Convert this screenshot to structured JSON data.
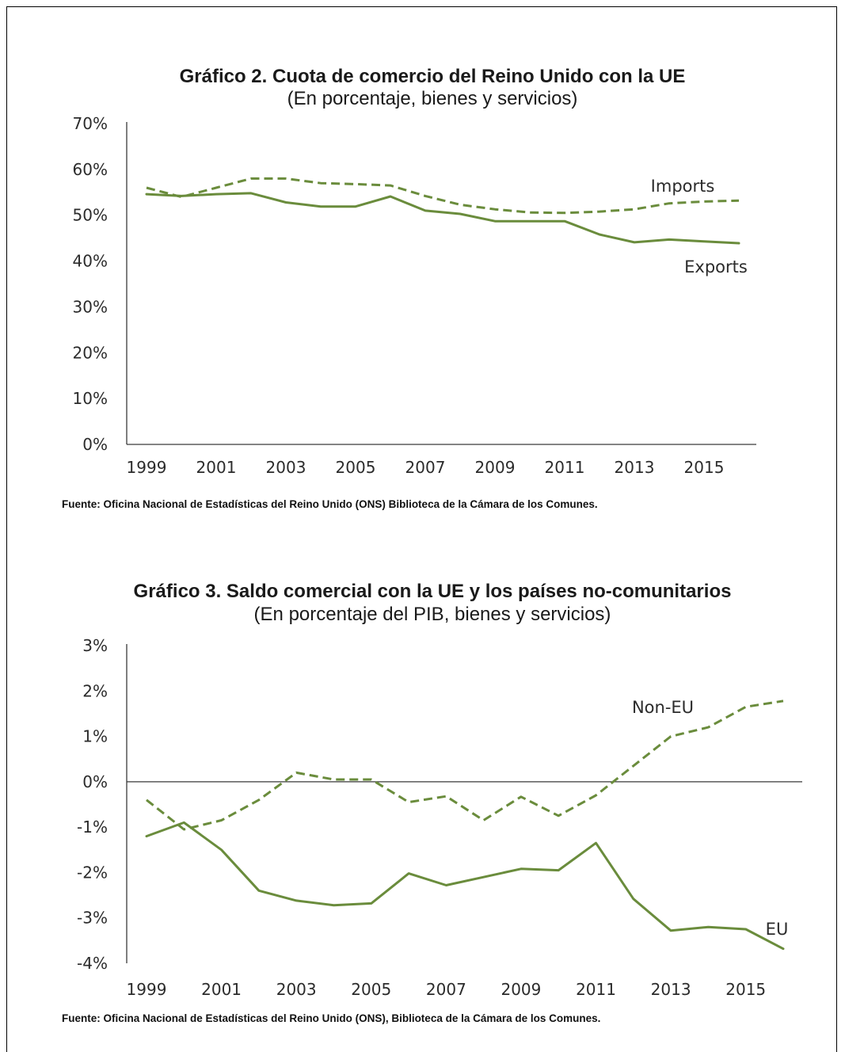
{
  "colors": {
    "series": "#6a8c3c",
    "axis": "#3a3a3a",
    "text": "#1a1a1a"
  },
  "chart_data": [
    {
      "type": "line",
      "title": "Gráfico 2. Cuota de comercio del Reino Unido con la UE",
      "subtitle": "(En porcentaje, bienes y servicios)",
      "ytick_labels": [
        "0%",
        "10%",
        "20%",
        "30%",
        "40%",
        "50%",
        "60%",
        "70%"
      ],
      "yticks": [
        0,
        10,
        20,
        30,
        40,
        50,
        60,
        70
      ],
      "ylim": [
        0,
        70
      ],
      "xtick_labels": [
        "1999",
        "2001",
        "2003",
        "2005",
        "2007",
        "2009",
        "2011",
        "2013",
        "2015"
      ],
      "xticks": [
        1999,
        2001,
        2003,
        2005,
        2007,
        2009,
        2011,
        2013,
        2015
      ],
      "xlim": [
        1999,
        2016
      ],
      "x": [
        1999,
        2000,
        2001,
        2002,
        2003,
        2004,
        2005,
        2006,
        2007,
        2008,
        2009,
        2010,
        2011,
        2012,
        2013,
        2014,
        2015,
        2016
      ],
      "series": [
        {
          "name": "Imports",
          "style": "dashed",
          "values": [
            56,
            54,
            56,
            58,
            58,
            57,
            56.8,
            56.5,
            54.2,
            52.3,
            51.3,
            50.6,
            50.5,
            50.8,
            51.3,
            52.6,
            53.0,
            53.2
          ]
        },
        {
          "name": "Exports",
          "style": "solid",
          "values": [
            54.6,
            54.2,
            54.6,
            54.8,
            52.8,
            51.9,
            51.9,
            54.1,
            51.0,
            50.3,
            48.7,
            48.7,
            48.7,
            45.8,
            44.1,
            44.7,
            44.3,
            43.9
          ]
        }
      ],
      "grid": false,
      "source": "Fuente: Oficina Nacional de Estadísticas del Reino Unido (ONS) Biblioteca de la Cámara de los Comunes."
    },
    {
      "type": "line",
      "title": "Gráfico 3. Saldo comercial con la UE y los países no-comunitarios",
      "subtitle": "(En porcentaje del PIB, bienes y servicios)",
      "ytick_labels": [
        "-4%",
        "-3%",
        "-2%",
        "-1%",
        "0%",
        "1%",
        "2%",
        "3%"
      ],
      "yticks": [
        -4,
        -3,
        -2,
        -1,
        0,
        1,
        2,
        3
      ],
      "ylim": [
        -4,
        3
      ],
      "xtick_labels": [
        "1999",
        "2001",
        "2003",
        "2005",
        "2007",
        "2009",
        "2011",
        "2013",
        "2015"
      ],
      "xticks": [
        1999,
        2001,
        2003,
        2005,
        2007,
        2009,
        2011,
        2013,
        2015
      ],
      "xlim": [
        1999,
        2016
      ],
      "x": [
        1999,
        2000,
        2001,
        2002,
        2003,
        2004,
        2005,
        2006,
        2007,
        2008,
        2009,
        2010,
        2011,
        2012,
        2013,
        2014,
        2015,
        2016
      ],
      "series": [
        {
          "name": "Non-EU",
          "style": "dashed",
          "values": [
            -0.4,
            -1.05,
            -0.85,
            -0.4,
            0.2,
            0.05,
            0.05,
            -0.45,
            -0.32,
            -0.85,
            -0.33,
            -0.75,
            -0.3,
            0.35,
            1.0,
            1.2,
            1.65,
            1.78
          ]
        },
        {
          "name": "EU",
          "style": "solid",
          "values": [
            -1.2,
            -0.9,
            -1.5,
            -2.4,
            -2.62,
            -2.72,
            -2.68,
            -2.02,
            -2.28,
            -2.1,
            -1.92,
            -1.95,
            -1.35,
            -2.58,
            -3.28,
            -3.2,
            -3.25,
            -3.68
          ]
        }
      ],
      "grid": false,
      "source": "Fuente: Oficina Nacional de Estadísticas del Reino Unido (ONS), Biblioteca de la Cámara de los Comunes."
    }
  ]
}
